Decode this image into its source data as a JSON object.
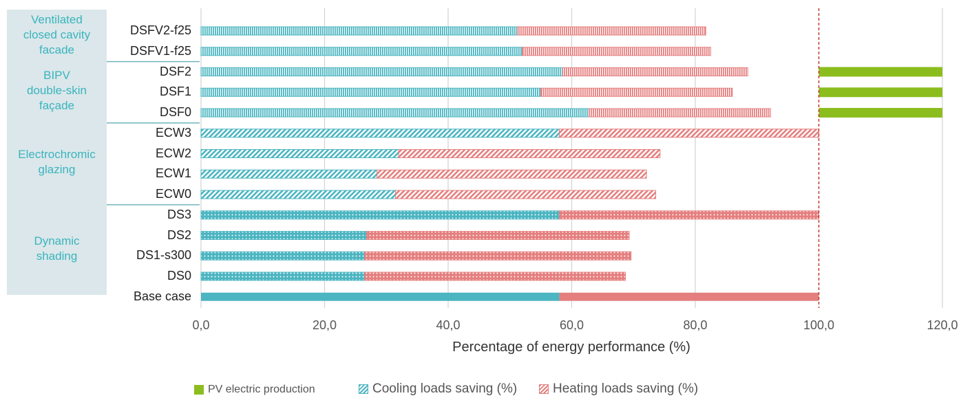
{
  "chart_data": {
    "type": "bar",
    "orientation": "horizontal",
    "stacked": true,
    "xlabel": "Percentage of energy performance (%)",
    "xlim": [
      0,
      120
    ],
    "xticks": [
      "0,0",
      "20,0",
      "40,0",
      "60,0",
      "80,0",
      "100,0",
      "120,0"
    ],
    "grid": true,
    "reference_line": 100,
    "legend_position": "bottom",
    "categories": [
      "DSFV2-f25",
      "DSFV1-f25",
      "DSF2",
      "DSF1",
      "DSF0",
      "ECW3",
      "ECW2",
      "ECW1",
      "ECW0",
      "DS3",
      "DS2",
      "DS1-s300",
      "DS0",
      "Base case"
    ],
    "patterns": [
      "vertical",
      "vertical",
      "vertical",
      "vertical",
      "vertical",
      "diagonal",
      "diagonal",
      "diagonal",
      "diagonal",
      "dots",
      "dots",
      "dots",
      "dots",
      "solid"
    ],
    "groups": [
      {
        "label": "Ventilated\nclosed cavity\nfacade",
        "categories": [
          "DSFV2-f25",
          "DSFV1-f25"
        ]
      },
      {
        "label": "BIPV\ndouble-skin\nfaçade",
        "categories": [
          "DSF2",
          "DSF1",
          "DSF0"
        ]
      },
      {
        "label": "Electrochromic\nglazing",
        "categories": [
          "ECW3",
          "ECW2",
          "ECW1",
          "ECW0"
        ]
      },
      {
        "label": "Dynamic\nshading",
        "categories": [
          "DS3",
          "DS2",
          "DS1-s300",
          "DS0"
        ]
      }
    ],
    "series": [
      {
        "name": "Cooling loads saving (%)",
        "color": "#4bb5c1",
        "values": [
          51.2,
          52.0,
          58.5,
          55.0,
          62.8,
          58.0,
          32.0,
          28.5,
          31.5,
          58.0,
          26.8,
          26.5,
          26.5,
          58.0
        ]
      },
      {
        "name": "Heating loads saving (%)",
        "color": "#e57f7f",
        "values": [
          30.5,
          30.5,
          30.0,
          31.0,
          29.4,
          42.0,
          42.3,
          43.6,
          42.1,
          42.0,
          42.5,
          43.1,
          42.2,
          42.0
        ]
      },
      {
        "name": "PV electric production",
        "color": "#8cbd1f",
        "values": [
          null,
          null,
          20.0,
          20.0,
          20.0,
          null,
          null,
          null,
          null,
          null,
          null,
          null,
          null,
          null
        ],
        "start": 100
      }
    ]
  },
  "legend": [
    {
      "label": "PV electric production",
      "color": "#8cbd1f"
    },
    {
      "label": "Cooling loads saving (%)",
      "color": "#4bb5c1"
    },
    {
      "label": "Heating loads saving (%)",
      "color": "#e57f7f"
    }
  ]
}
